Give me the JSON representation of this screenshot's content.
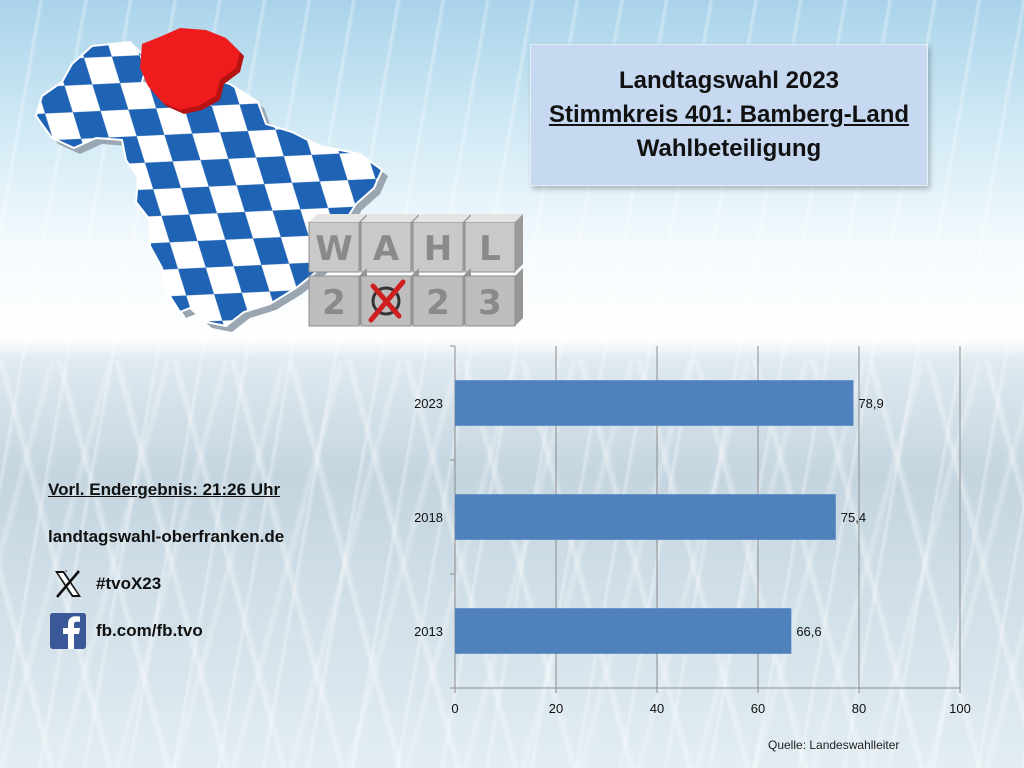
{
  "header": {
    "line1": "Landtagswahl 2023",
    "line2": "Stimmkreis 401: Bamberg-Land",
    "line3": "Wahlbeteiligung"
  },
  "info": {
    "status": "Vorl. Endergebnis: 21:26 Uhr",
    "website": "landtagswahl-oberfranken.de",
    "x_handle": "#tvoX23",
    "facebook": "fb.com/fb.tvo"
  },
  "cube_letters": {
    "top": [
      "W",
      "A",
      "H",
      "L"
    ],
    "bottom": [
      "2",
      "",
      "2",
      "3"
    ]
  },
  "icons": {
    "x": "x-logo-icon",
    "facebook": "facebook-logo-icon",
    "map": "bavaria-map-icon",
    "ballot": "ballot-cross-icon"
  },
  "colors": {
    "bar": "#4f81bd",
    "map_blue": "#1f63b5",
    "region_red": "#ee1c1c",
    "title_box": "#c6d9f1"
  },
  "source": "Quelle: Landeswahlleiter",
  "chart_data": {
    "type": "bar",
    "orientation": "horizontal",
    "categories": [
      "2023",
      "2018",
      "2013"
    ],
    "values": [
      78.9,
      75.4,
      66.6
    ],
    "value_labels": [
      "78,9",
      "75,4",
      "66,6"
    ],
    "xlim": [
      0,
      100
    ],
    "xticks": [
      0,
      20,
      40,
      60,
      80,
      100
    ],
    "grid": true
  }
}
